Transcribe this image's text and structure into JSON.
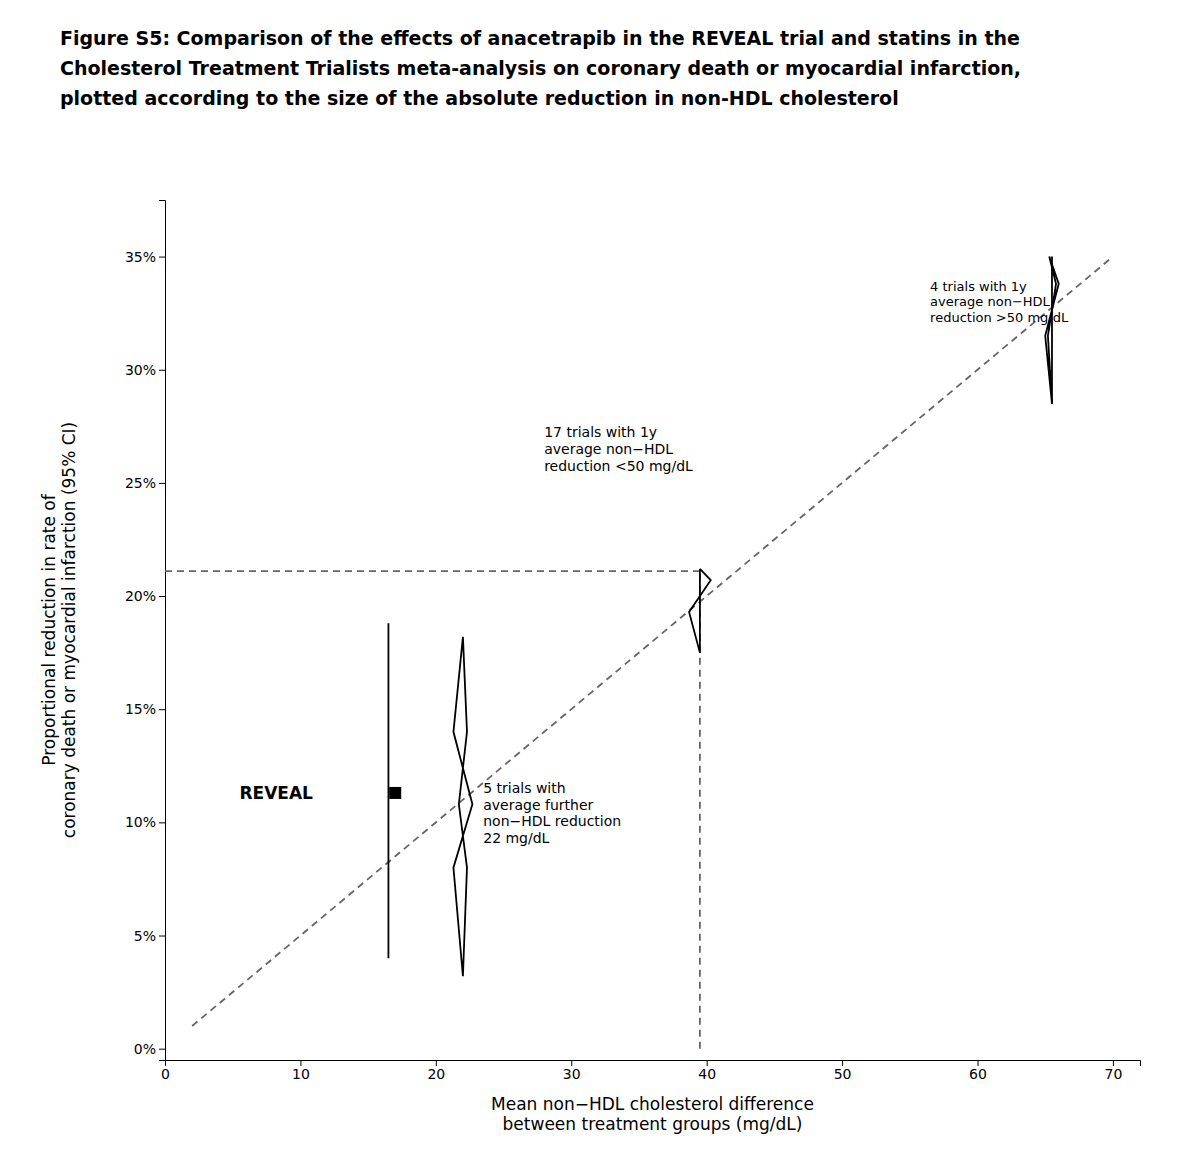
{
  "chart_data": {
    "type": "line",
    "title": [
      "Figure S5: Comparison of the effects of anacetrapib in the REVEAL trial and statins in the",
      "Cholesterol Treatment Trialists meta-analysis on coronary death or myocardial infarction,",
      "plotted according to the size of the absolute reduction in non-HDL cholesterol"
    ],
    "x_label": "Mean non−HDL cholesterol difference\nbetween treatment groups (mg/dL)",
    "y_label": "Proportional reduction in rate of\ncoronary death or myocardial infarction (95% CI)",
    "xlim": [
      0,
      72
    ],
    "ylim": [
      -0.005,
      0.375
    ],
    "xticks": [
      0,
      10,
      20,
      30,
      40,
      50,
      60,
      70
    ],
    "yticks": [
      {
        "value": 0.0,
        "label": "0%"
      },
      {
        "value": 0.05,
        "label": "5%"
      },
      {
        "value": 0.1,
        "label": "10%"
      },
      {
        "value": 0.15,
        "label": "15%"
      },
      {
        "value": 0.2,
        "label": "20%"
      },
      {
        "value": 0.25,
        "label": "25%"
      },
      {
        "value": 0.3,
        "label": "30%"
      },
      {
        "value": 0.35,
        "label": "35%"
      }
    ],
    "grid": false,
    "series": [
      {
        "x": [
          2.0,
          70.0
        ],
        "values": [
          0.01,
          0.35
        ],
        "color": "#666666",
        "line_style": "dashed"
      },
      {
        "x": [
          0.0,
          39.5
        ],
        "values": [
          0.211,
          0.211
        ],
        "color": "#666666",
        "line_style": "dashed"
      },
      {
        "x": [
          39.5,
          39.5
        ],
        "values": [
          0.0,
          0.211
        ],
        "color": "#666666",
        "line_style": "dashed"
      },
      {
        "x": [
          16.5,
          16.5
        ],
        "values": [
          0.04,
          0.188
        ],
        "color": "#000000",
        "line_style": "solid"
      },
      {
        "x": [
          22.0,
          21.3,
          22.7,
          21.3,
          22.0,
          22.3,
          21.7,
          22.3,
          22.0
        ],
        "values": [
          0.032,
          0.08,
          0.108,
          0.14,
          0.182,
          0.14,
          0.108,
          0.08,
          0.032
        ],
        "color": "#000000",
        "line_style": "solid"
      },
      {
        "x": [
          39.5,
          39.5
        ],
        "values": [
          0.175,
          0.212
        ],
        "color": "#000000",
        "line_style": "solid"
      },
      {
        "x": [
          39.5,
          38.7,
          40.3,
          39.5,
          39.5
        ],
        "values": [
          0.175,
          0.193,
          0.207,
          0.212,
          0.212
        ],
        "color": "#000000",
        "line_style": "solid"
      },
      {
        "x": [
          65.5,
          65.5
        ],
        "values": [
          0.285,
          0.35
        ],
        "color": "#000000",
        "line_style": "solid"
      },
      {
        "x": [
          65.5,
          65.0,
          66.0,
          65.3,
          65.8,
          65.2,
          65.5
        ],
        "values": [
          0.285,
          0.315,
          0.338,
          0.35,
          0.338,
          0.315,
          0.285
        ],
        "color": "#000000",
        "line_style": "solid"
      },
      {
        "type": "scatter",
        "marker": "square",
        "x": [
          17.0
        ],
        "values": [
          0.113
        ],
        "color": "#000000"
      }
    ],
    "annotations": [
      {
        "text": "REVEAL",
        "x": 5.5,
        "y": 0.113
      },
      {
        "text": "5 trials with\naverage further\nnon−HDL reduction\n22 mg/dL",
        "x": 23.5,
        "y": 0.118
      },
      {
        "text": "17 trials with 1y\naverage non−HDL\nreduction <50 mg/dL",
        "x": 28.0,
        "y": 0.254
      },
      {
        "text": "4 trials with 1y\naverage non−HDL\nreduction >50 mg/dL",
        "x": 56.5,
        "y": 0.33
      }
    ]
  }
}
